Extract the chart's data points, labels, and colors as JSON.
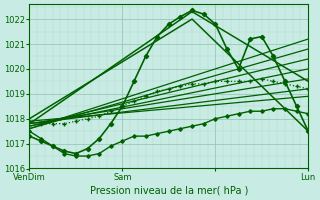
{
  "title": "",
  "xlabel": "Pression niveau de la mer( hPa )",
  "ylabel": "",
  "bg_color": "#c8ece4",
  "grid_color": "#b0d4c8",
  "line_color": "#006000",
  "dark_line_color": "#004000",
  "ylim": [
    1016.0,
    1022.6
  ],
  "xlim": [
    0,
    72
  ],
  "xtick_positions": [
    0,
    24,
    48,
    72
  ],
  "xtick_labels": [
    "VenDim",
    "Sam",
    "",
    "Lun"
  ],
  "ytick_positions": [
    1016,
    1017,
    1018,
    1019,
    1020,
    1021,
    1022
  ],
  "ytick_labels": [
    "1016",
    "1017",
    "1018",
    "1019",
    "1020",
    "1021",
    "1022"
  ],
  "series": [
    {
      "x": [
        0,
        3,
        6,
        9,
        12,
        15,
        18,
        21,
        24,
        27,
        30,
        33,
        36,
        39,
        42,
        45,
        48,
        51,
        54,
        57,
        60,
        63,
        66,
        69,
        72
      ],
      "y": [
        1017.3,
        1017.1,
        1016.9,
        1016.7,
        1016.6,
        1016.8,
        1017.2,
        1017.8,
        1018.5,
        1019.5,
        1020.5,
        1021.3,
        1021.8,
        1022.1,
        1022.35,
        1022.2,
        1021.8,
        1020.8,
        1020.0,
        1021.2,
        1021.3,
        1020.5,
        1019.5,
        1018.5,
        1017.5
      ],
      "style": "solid",
      "marker": "D",
      "lw": 1.2,
      "ms": 2.2,
      "color": "#006000"
    },
    {
      "x": [
        0,
        3,
        6,
        9,
        12,
        15,
        18,
        21,
        24,
        27,
        30,
        33,
        36,
        39,
        42,
        45,
        48,
        51,
        54,
        57,
        60,
        63,
        66,
        69,
        72
      ],
      "y": [
        1017.5,
        1017.2,
        1016.9,
        1016.6,
        1016.5,
        1016.5,
        1016.6,
        1016.9,
        1017.1,
        1017.3,
        1017.3,
        1017.4,
        1017.5,
        1017.6,
        1017.7,
        1017.8,
        1018.0,
        1018.1,
        1018.2,
        1018.3,
        1018.3,
        1018.4,
        1018.4,
        1018.3,
        1018.2
      ],
      "style": "solid",
      "marker": "D",
      "lw": 1.0,
      "ms": 1.8,
      "color": "#006000"
    },
    {
      "x": [
        0,
        72
      ],
      "y": [
        1017.6,
        1021.2
      ],
      "style": "solid",
      "marker": null,
      "lw": 0.9,
      "ms": 0,
      "color": "#006000"
    },
    {
      "x": [
        0,
        72
      ],
      "y": [
        1017.6,
        1020.8
      ],
      "style": "solid",
      "marker": null,
      "lw": 0.9,
      "ms": 0,
      "color": "#006000"
    },
    {
      "x": [
        0,
        72
      ],
      "y": [
        1017.7,
        1020.4
      ],
      "style": "solid",
      "marker": null,
      "lw": 0.9,
      "ms": 0,
      "color": "#006000"
    },
    {
      "x": [
        0,
        72
      ],
      "y": [
        1017.7,
        1020.0
      ],
      "style": "solid",
      "marker": null,
      "lw": 0.9,
      "ms": 0,
      "color": "#006000"
    },
    {
      "x": [
        0,
        72
      ],
      "y": [
        1017.8,
        1019.6
      ],
      "style": "solid",
      "marker": null,
      "lw": 0.9,
      "ms": 0,
      "color": "#006000"
    },
    {
      "x": [
        0,
        72
      ],
      "y": [
        1017.8,
        1019.2
      ],
      "style": "solid",
      "marker": null,
      "lw": 0.9,
      "ms": 0,
      "color": "#006000"
    },
    {
      "x": [
        0,
        72
      ],
      "y": [
        1017.9,
        1018.9
      ],
      "style": "solid",
      "marker": null,
      "lw": 0.9,
      "ms": 0,
      "color": "#006000"
    },
    {
      "x": [
        0,
        42,
        72
      ],
      "y": [
        1017.8,
        1022.3,
        1019.5
      ],
      "style": "solid",
      "marker": null,
      "lw": 1.1,
      "ms": 0,
      "color": "#006000"
    },
    {
      "x": [
        0,
        42,
        72
      ],
      "y": [
        1018.0,
        1022.0,
        1017.5
      ],
      "style": "solid",
      "marker": null,
      "lw": 1.1,
      "ms": 0,
      "color": "#006000"
    },
    {
      "x": [
        0,
        3,
        6,
        9,
        12,
        15,
        18,
        21,
        24,
        27,
        30,
        33,
        36,
        39,
        42,
        45,
        48,
        51,
        54,
        57,
        60,
        63,
        66,
        69,
        72
      ],
      "y": [
        1017.9,
        1017.8,
        1017.8,
        1017.8,
        1017.9,
        1018.0,
        1018.1,
        1018.3,
        1018.5,
        1018.7,
        1018.9,
        1019.1,
        1019.2,
        1019.3,
        1019.4,
        1019.4,
        1019.5,
        1019.5,
        1019.5,
        1019.5,
        1019.6,
        1019.5,
        1019.4,
        1019.3,
        1019.2
      ],
      "style": "dotted",
      "marker": "+",
      "lw": 0.9,
      "ms": 2.5,
      "color": "#006000"
    }
  ]
}
